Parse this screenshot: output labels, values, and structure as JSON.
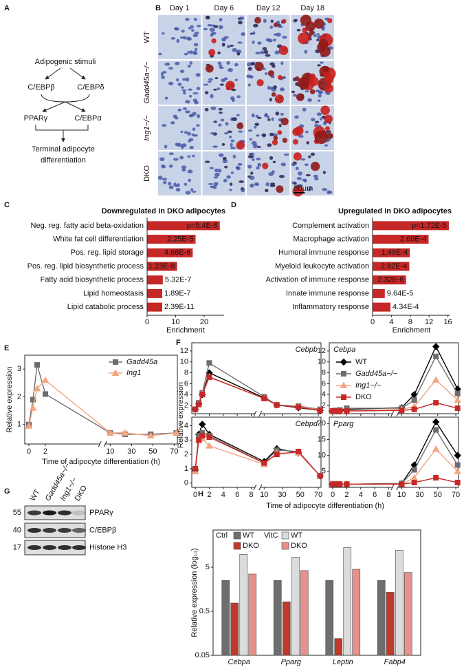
{
  "panel_labels": [
    "A",
    "B",
    "C",
    "D",
    "E",
    "F",
    "G",
    "H"
  ],
  "panel_a": {
    "lines": [
      "Adipogenic stimuli",
      "C/EBPβ",
      "C/EBPδ",
      "PPARγ",
      "C/EBPα",
      "Terminal adipocyte",
      "differentiation"
    ]
  },
  "panel_b": {
    "columns": [
      "Day 1",
      "Day 6",
      "Day 12",
      "Day 18"
    ],
    "rows": [
      "WT",
      "Gadd45a−/−",
      "Ing1−/−",
      "DKO"
    ],
    "scale_bar": "50μm"
  },
  "chart_data": [
    {
      "type": "hbar",
      "title": "Downregulated in DKO adipocytes",
      "categories": [
        "Neg. reg. fatty acid beta-oxidation",
        "White fat cell differentiation",
        "Pos. reg. lipid storage",
        "Pos. reg. lipid biosynthetic process",
        "Fatty acid biosynthetic process",
        "Lipid homeostasis",
        "Lipid catabolic process"
      ],
      "values": [
        25.5,
        17,
        16,
        10.5,
        5.5,
        5.3,
        5.3
      ],
      "bar_texts": [
        "p=5.4E-6",
        "2.25E-5",
        "4.66E-6",
        "1.23E-8",
        "5.32E-7",
        "1.89E-7",
        "2.39E-11"
      ],
      "color": "#c62828",
      "xlim": [
        0,
        27
      ],
      "xticks": [
        0,
        10,
        20
      ],
      "x_label": "Enrichment"
    },
    {
      "type": "hbar",
      "title": "Upregulated in DKO adipocytes",
      "categories": [
        "Complement activation",
        "Macrophage activation",
        "Humoral immune response",
        "Myeloid leukocyte activation",
        "Activation of immune response",
        "Innate immune response",
        "Inflammatory response"
      ],
      "values": [
        16.2,
        11.9,
        7.9,
        7.8,
        7.1,
        2.6,
        3.8
      ],
      "bar_texts": [
        "p=1.72E-5",
        "2.69E-4",
        "1.49E-4",
        "2.82E-4",
        "2.32E-6",
        "9.64E-5",
        "4.34E-4"
      ],
      "color": "#c62828",
      "xlim": [
        0,
        16.5
      ],
      "xticks": [
        0,
        4,
        8,
        12,
        16
      ],
      "x_label": "Enrichment"
    },
    {
      "type": "line",
      "x": [
        0,
        0.5,
        1,
        2,
        10,
        24,
        48,
        72
      ],
      "xlim": [
        -0.5,
        73
      ],
      "xbreak": [
        8,
        10
      ],
      "xticks": [
        0,
        2,
        10,
        30,
        50,
        70
      ],
      "ylim": [
        0.3,
        3.5
      ],
      "yticks": [
        1,
        2,
        3
      ],
      "y_label": "Relative expression",
      "x_label": "Time of adipocyte differentiation (h)",
      "series": [
        {
          "name": "Gadd45a",
          "color": "#6d6d6d",
          "marker": "square",
          "values": [
            1,
            1.9,
            3.15,
            2.1,
            0.7,
            0.65,
            0.65,
            0.7
          ]
        },
        {
          "name": "Ing1",
          "color": "#f4a582",
          "marker": "triangle",
          "values": [
            0.95,
            1.6,
            2.3,
            2.6,
            0.7,
            0.7,
            0.6,
            0.7
          ]
        }
      ]
    },
    {
      "type": "line",
      "x": [
        0,
        0.5,
        1,
        2,
        10,
        24,
        48,
        72
      ],
      "xlim": [
        -0.5,
        73
      ],
      "xbreak": [
        8,
        10
      ],
      "xticks": [
        0,
        2,
        4,
        6,
        8,
        10,
        30,
        50,
        70
      ],
      "y_label": "Relative expression",
      "x_label": "Time of adipocyte differentiation (h)",
      "series_styles": [
        {
          "name": "WT",
          "color": "#000000",
          "marker": "diamond"
        },
        {
          "name": "Gadd45a−/−",
          "color": "#6d6d6d",
          "marker": "square"
        },
        {
          "name": "Ing1−/−",
          "color": "#f4a582",
          "marker": "triangle"
        },
        {
          "name": "DKO",
          "color": "#c62828",
          "marker": "square"
        }
      ],
      "panels": [
        {
          "title": "Cebpb",
          "ylim": [
            0.5,
            13.5
          ],
          "yticks": [
            2,
            4,
            6,
            8,
            10,
            12
          ],
          "series": [
            {
              "values": [
                1.3,
                2.3,
                4,
                8,
                3.4,
                2.1,
                1.6,
                1.1
              ]
            },
            {
              "values": [
                1.3,
                2.5,
                4.3,
                9.8,
                3.6,
                2.1,
                1.9,
                1.3
              ]
            },
            {
              "values": [
                1.3,
                2.2,
                4.1,
                7.3,
                3.3,
                2.1,
                1.8,
                1.2
              ]
            },
            {
              "values": [
                1.3,
                2.2,
                4,
                7.2,
                3.3,
                2.1,
                1.7,
                1.1
              ]
            }
          ]
        },
        {
          "title": "Cebpa",
          "ylim": [
            0.5,
            13.5
          ],
          "yticks": [
            2,
            4,
            6,
            8,
            10,
            12
          ],
          "series": [
            {
              "values": [
                1,
                1,
                1,
                1.3,
                1.6,
                4,
                12.8,
                5
              ]
            },
            {
              "values": [
                1,
                1.1,
                1.2,
                1.5,
                1.5,
                3,
                11,
                4.2
              ]
            },
            {
              "values": [
                1,
                1,
                1,
                1,
                1.3,
                1.8,
                6.7,
                3
              ]
            },
            {
              "values": [
                1,
                1,
                1,
                1,
                1.1,
                1.3,
                2.5,
                1.5
              ]
            }
          ]
        },
        {
          "title": "Cebpd",
          "ylim": [
            -0.3,
            4.6
          ],
          "yticks": [
            0,
            1,
            2,
            3,
            4
          ],
          "series": [
            {
              "values": [
                0.9,
                3.4,
                4.1,
                3.4,
                1.5,
                2.4,
                2.1,
                0.5
              ]
            },
            {
              "values": [
                0.9,
                3.3,
                3.5,
                3.3,
                1.4,
                2.3,
                2.2,
                0.5
              ]
            },
            {
              "values": [
                0.8,
                3,
                3.1,
                2.6,
                1.3,
                2.1,
                2.1,
                0.5
              ]
            },
            {
              "values": [
                1,
                3,
                3.3,
                3.2,
                1.4,
                2,
                2.2,
                0.5
              ]
            }
          ]
        },
        {
          "title": "Pparg",
          "ylim": [
            0,
            22
          ],
          "yticks": [
            5,
            10,
            15,
            20
          ],
          "series": [
            {
              "values": [
                1,
                1,
                1,
                1,
                1.2,
                7,
                20.5,
                10
              ]
            },
            {
              "values": [
                1,
                1,
                1,
                1,
                1.2,
                5.5,
                18,
                7
              ]
            },
            {
              "values": [
                1,
                1,
                1,
                1,
                1,
                3,
                12,
                5
              ]
            },
            {
              "values": [
                1,
                1,
                1,
                1,
                1,
                1.5,
                3,
                1.5
              ]
            }
          ]
        }
      ]
    },
    {
      "type": "bar",
      "log_scale": true,
      "categories": [
        "Cebpa",
        "Pparg",
        "Leptin",
        "Fabp4"
      ],
      "legend_groups": [
        "Ctrl",
        "VitC"
      ],
      "ylim": [
        0.05,
        35
      ],
      "yticks": [
        0.05,
        0.5,
        5
      ],
      "y_label": "Relative expression (log₁₀)",
      "series": [
        {
          "name": "WT",
          "color": "#6e6e6e",
          "values": [
            2.5,
            2.5,
            2.5,
            2.5
          ]
        },
        {
          "name": "DKO",
          "color": "#c0392b",
          "values": [
            0.77,
            0.82,
            0.12,
            1.35
          ]
        },
        {
          "name": "WT",
          "color": "#dcdcdc",
          "values": [
            9.8,
            8.5,
            14,
            12.2
          ]
        },
        {
          "name": "DKO",
          "color": "#e8908c",
          "values": [
            3.5,
            4.2,
            4.5,
            3.8
          ]
        }
      ]
    }
  ],
  "panel_g": {
    "lanes": [
      "WT",
      "Gadd45a−/−",
      "Ing1−/−",
      "DKO"
    ],
    "markers": [
      "55",
      "40",
      "17"
    ],
    "bands": [
      "PPARγ",
      "C/EBPβ",
      "Histone H3"
    ]
  }
}
